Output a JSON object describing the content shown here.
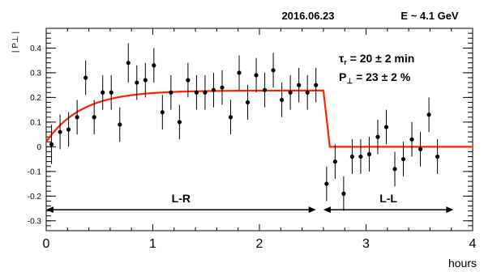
{
  "chart_data": {
    "type": "scatter",
    "title_left": "2016.06.23",
    "title_right": "E ~ 4.1 GeV",
    "ylabel": "| P⊥ |",
    "xlabel": "hours",
    "xlim": [
      0,
      4
    ],
    "ylim": [
      -0.34,
      0.48
    ],
    "x_ticks": [
      0,
      1,
      2,
      3,
      4
    ],
    "y_ticks": [
      -0.3,
      -0.2,
      -0.1,
      0,
      0.1,
      0.2,
      0.3,
      0.4
    ],
    "grid": false,
    "annotation_tau": {
      "symbol": "τ",
      "sub": "r",
      "text": " = 20  ± 2 min"
    },
    "annotation_p": {
      "symbol": "P",
      "sub": "⊥",
      "text": " = 23  ± 2 %"
    },
    "regions": [
      {
        "label": "L-R",
        "x_start": 0.0,
        "x_end": 2.53,
        "y": -0.255
      },
      {
        "label": "L-L",
        "x_start": 2.6,
        "x_end": 3.82,
        "y": -0.255
      }
    ],
    "fit_color": "#ff2200",
    "fit": {
      "tau_hours": 0.333,
      "plateau": 0.228,
      "x_switch": 2.6,
      "y_start": 0.02,
      "x_end": 4.0,
      "y_after": 0.0
    },
    "series": [
      {
        "x": [
          0.05,
          0.13,
          0.21,
          0.29,
          0.37,
          0.45,
          0.53,
          0.61,
          0.69,
          0.77,
          0.85,
          0.93,
          1.01,
          1.09,
          1.17,
          1.25,
          1.33,
          1.41,
          1.49,
          1.57,
          1.65,
          1.73,
          1.81,
          1.89,
          1.97,
          2.05,
          2.13,
          2.21,
          2.29,
          2.37,
          2.45,
          2.53
        ],
        "y": [
          0.01,
          0.06,
          0.07,
          0.12,
          0.28,
          0.12,
          0.22,
          0.22,
          0.09,
          0.34,
          0.26,
          0.27,
          0.33,
          0.14,
          0.22,
          0.1,
          0.27,
          0.22,
          0.22,
          0.23,
          0.24,
          0.12,
          0.3,
          0.18,
          0.29,
          0.23,
          0.31,
          0.19,
          0.22,
          0.25,
          0.22,
          0.25
        ],
        "err": [
          0.08,
          0.07,
          0.07,
          0.07,
          0.07,
          0.07,
          0.07,
          0.07,
          0.07,
          0.08,
          0.07,
          0.07,
          0.07,
          0.07,
          0.07,
          0.07,
          0.07,
          0.07,
          0.07,
          0.07,
          0.07,
          0.07,
          0.07,
          0.07,
          0.07,
          0.07,
          0.07,
          0.07,
          0.07,
          0.07,
          0.07,
          0.07
        ]
      },
      {
        "x": [
          2.63,
          2.71,
          2.79,
          2.87,
          2.95,
          3.03,
          3.11,
          3.19,
          3.27,
          3.35,
          3.43,
          3.51,
          3.59,
          3.67
        ],
        "y": [
          -0.15,
          -0.06,
          -0.19,
          -0.04,
          -0.04,
          -0.03,
          0.04,
          0.08,
          -0.09,
          -0.05,
          0.03,
          -0.01,
          0.13,
          -0.04
        ],
        "err": [
          0.07,
          0.07,
          0.07,
          0.07,
          0.07,
          0.07,
          0.07,
          0.07,
          0.07,
          0.07,
          0.07,
          0.07,
          0.07,
          0.07
        ]
      }
    ]
  }
}
